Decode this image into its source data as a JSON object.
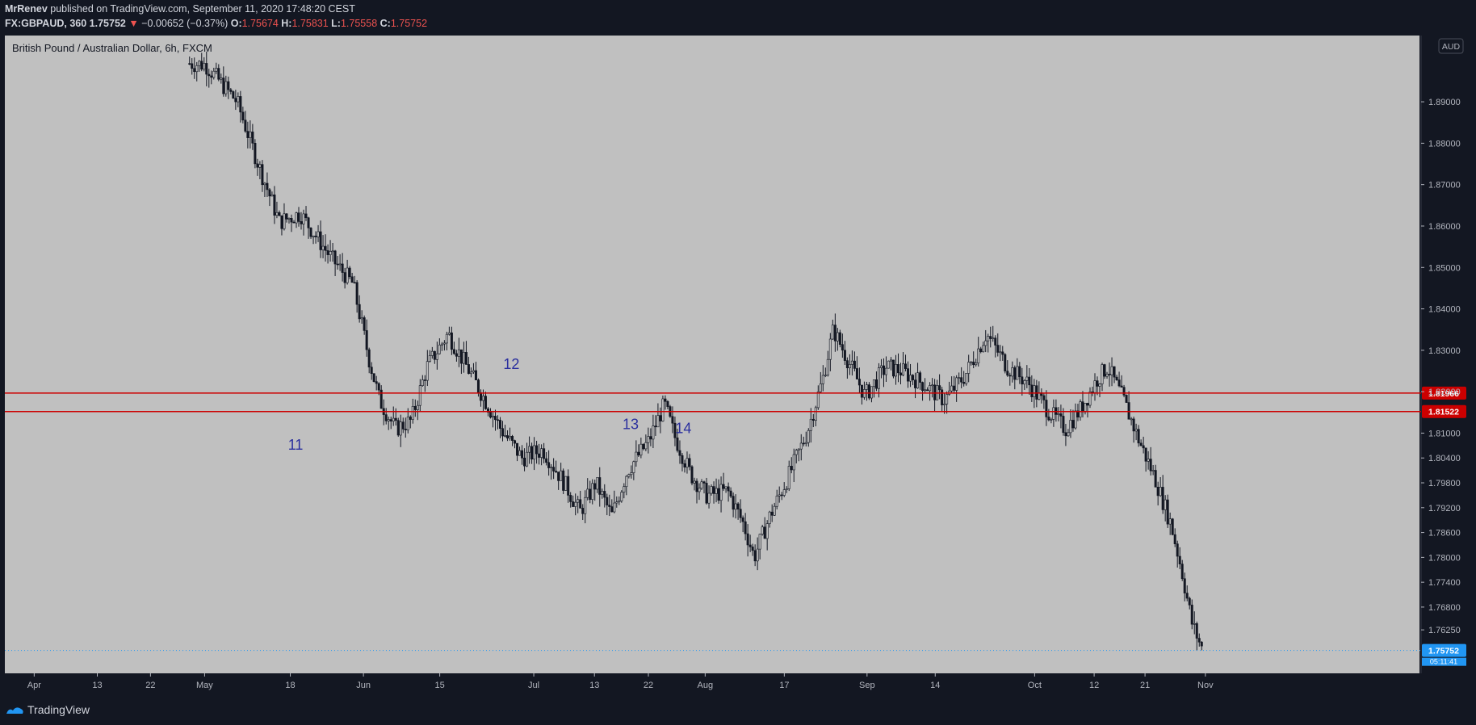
{
  "header": {
    "author": "MrRenev",
    "published": " published on TradingView.com, September 11, 2020 17:48:20 CEST",
    "symbol": "FX:GBPAUD, 360",
    "last": "1.75752",
    "change_arrow": "▼",
    "change": "−0.00652 (−0.37%)",
    "o_label": "O:",
    "o_value": "1.75674",
    "h_label": "H:",
    "h_value": "1.75831",
    "l_label": "L:",
    "l_value": "1.75558",
    "c_label": "C:",
    "c_value": "1.75752"
  },
  "chart_title": "British Pound / Australian Dollar, 6h, FXCM",
  "footer": {
    "brand": "TradingView"
  },
  "colors": {
    "background": "#c0c0c0",
    "panel": "#131722",
    "candle": "#131722",
    "level_line": "#cc0000",
    "annotation": "#2a2f9e",
    "last_price": "#2196f3"
  },
  "chart_data": {
    "type": "candlestick",
    "currency_badge": "AUD",
    "ylim": [
      1.752,
      1.906
    ],
    "y_ticks": [
      "1.89000",
      "1.88000",
      "1.87000",
      "1.86000",
      "1.85000",
      "1.84000",
      "1.83000",
      "1.82000",
      "1.81000",
      "1.80400",
      "1.79800",
      "1.79200",
      "1.78600",
      "1.78000",
      "1.77400",
      "1.76800",
      "1.76250"
    ],
    "y_tick_values": [
      1.89,
      1.88,
      1.87,
      1.86,
      1.85,
      1.84,
      1.83,
      1.82,
      1.81,
      1.804,
      1.798,
      1.792,
      1.786,
      1.78,
      1.774,
      1.768,
      1.7625
    ],
    "x_ticks": [
      "Apr",
      "13",
      "22",
      "May",
      "18",
      "Jun",
      "15",
      "Jul",
      "13",
      "22",
      "Aug",
      "17",
      "Sep",
      "14",
      "Oct",
      "12",
      "21",
      "Nov"
    ],
    "price_path": [
      [
        0,
        1.914
      ],
      [
        0.13,
        1.9
      ],
      [
        0.19,
        1.899
      ],
      [
        0.22,
        1.89
      ],
      [
        0.24,
        1.875
      ],
      [
        0.26,
        1.861
      ],
      [
        0.28,
        1.863
      ],
      [
        0.31,
        1.852
      ],
      [
        0.33,
        1.846
      ],
      [
        0.345,
        1.828
      ],
      [
        0.355,
        1.818
      ],
      [
        0.37,
        1.811
      ],
      [
        0.385,
        1.813
      ],
      [
        0.4,
        1.826
      ],
      [
        0.42,
        1.834
      ],
      [
        0.44,
        1.825
      ],
      [
        0.455,
        1.818
      ],
      [
        0.47,
        1.811
      ],
      [
        0.49,
        1.804
      ],
      [
        0.51,
        1.806
      ],
      [
        0.53,
        1.798
      ],
      [
        0.545,
        1.791
      ],
      [
        0.56,
        1.798
      ],
      [
        0.575,
        1.79
      ],
      [
        0.59,
        1.801
      ],
      [
        0.61,
        1.808
      ],
      [
        0.625,
        1.817
      ],
      [
        0.635,
        1.809
      ],
      [
        0.65,
        1.8
      ],
      [
        0.665,
        1.795
      ],
      [
        0.685,
        1.796
      ],
      [
        0.7,
        1.788
      ],
      [
        0.71,
        1.78
      ],
      [
        0.725,
        1.79
      ],
      [
        0.745,
        1.801
      ],
      [
        0.76,
        1.81
      ],
      [
        0.775,
        1.823
      ],
      [
        0.785,
        1.835
      ],
      [
        0.8,
        1.827
      ],
      [
        0.815,
        1.819
      ],
      [
        0.835,
        1.826
      ],
      [
        0.85,
        1.825
      ],
      [
        0.87,
        1.822
      ],
      [
        0.89,
        1.818
      ],
      [
        0.91,
        1.824
      ],
      [
        0.93,
        1.834
      ],
      [
        0.95,
        1.826
      ],
      [
        0.97,
        1.822
      ],
      [
        0.99,
        1.815
      ],
      [
        1.005,
        1.811
      ],
      [
        1.02,
        1.816
      ],
      [
        1.035,
        1.823
      ],
      [
        1.045,
        1.826
      ],
      [
        1.06,
        1.818
      ],
      [
        1.075,
        1.808
      ],
      [
        1.09,
        1.799
      ],
      [
        1.105,
        1.788
      ],
      [
        1.115,
        1.777
      ],
      [
        1.125,
        1.764
      ],
      [
        1.135,
        1.7575
      ]
    ],
    "price_lines": [
      {
        "value": 1.81966,
        "label": "1.81966"
      },
      {
        "value": 1.81522,
        "label": "1.81522"
      }
    ],
    "last_price": {
      "value": 1.75752,
      "label": "1.75752",
      "countdown": "05:11:41"
    },
    "annotations": [
      {
        "text": "11",
        "x": 0.2755,
        "y": 1.806
      },
      {
        "text": "12",
        "x": 0.48,
        "y": 1.8255
      },
      {
        "text": "13",
        "x": 0.593,
        "y": 1.811
      },
      {
        "text": "14",
        "x": 0.643,
        "y": 1.81
      }
    ]
  }
}
